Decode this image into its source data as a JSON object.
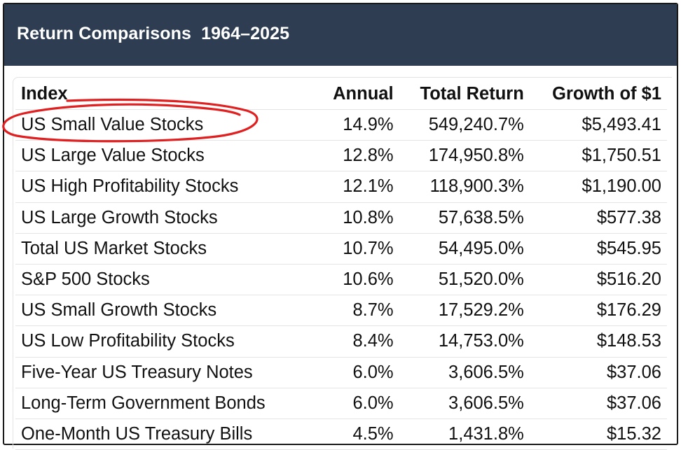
{
  "title": "Return Comparisons  1964–2025",
  "columns": [
    "Index",
    "Annual",
    "Total Return",
    "Growth of $1"
  ],
  "rows": [
    [
      "US Small Value Stocks",
      "14.9%",
      "549,240.7%",
      "$5,493.41"
    ],
    [
      "US Large Value Stocks",
      "12.8%",
      "174,950.8%",
      "$1,750.51"
    ],
    [
      "US High Profitability Stocks",
      "12.1%",
      "118,900.3%",
      "$1,190.00"
    ],
    [
      "US Large Growth Stocks",
      "10.8%",
      "57,638.5%",
      "$577.38"
    ],
    [
      "Total US Market Stocks",
      "10.7%",
      "54,495.0%",
      "$545.95"
    ],
    [
      "S&P 500 Stocks",
      "10.6%",
      "51,520.0%",
      "$516.20"
    ],
    [
      "US Small Growth Stocks",
      "8.7%",
      "17,529.2%",
      "$176.29"
    ],
    [
      "US Low Profitability Stocks",
      "8.4%",
      "14,753.0%",
      "$148.53"
    ],
    [
      "Five-Year US Treasury Notes",
      "6.0%",
      "3,606.5%",
      "$37.06"
    ],
    [
      "Long-Term Government Bonds",
      "6.0%",
      "3,606.5%",
      "$37.06"
    ],
    [
      "One-Month US Treasury Bills",
      "4.5%",
      "1,431.8%",
      "$15.32"
    ]
  ],
  "highlight_color": "#e02020",
  "header_color": "#2e3d52"
}
